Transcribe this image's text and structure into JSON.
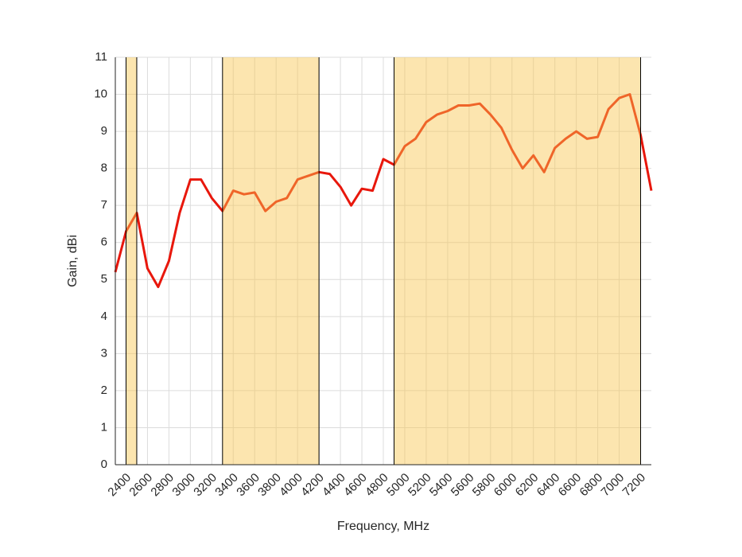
{
  "chart_data": {
    "type": "line",
    "xlabel": "Frequency, MHz",
    "ylabel": "Gain, dBi",
    "x": [
      2300,
      2400,
      2500,
      2600,
      2700,
      2800,
      2900,
      3000,
      3100,
      3200,
      3300,
      3400,
      3500,
      3600,
      3700,
      3800,
      3900,
      4000,
      4100,
      4200,
      4300,
      4400,
      4500,
      4600,
      4700,
      4800,
      4900,
      5000,
      5100,
      5200,
      5300,
      5400,
      5500,
      5600,
      5700,
      5800,
      5900,
      6000,
      6100,
      6200,
      6300,
      6400,
      6500,
      6600,
      6700,
      6800,
      6900,
      7000,
      7100,
      7200,
      7300
    ],
    "series": [
      {
        "color": "#e8170c",
        "values": [
          5.2,
          6.3,
          6.8,
          5.3,
          4.8,
          5.5,
          6.8,
          7.7,
          7.7,
          7.2,
          6.85,
          7.4,
          7.3,
          7.35,
          6.85,
          7.1,
          7.2,
          7.7,
          7.8,
          7.9,
          7.85,
          7.5,
          7.0,
          7.45,
          7.4,
          8.25,
          8.1,
          8.6,
          8.8,
          9.25,
          9.45,
          9.55,
          9.7,
          9.7,
          9.75,
          9.45,
          9.1,
          8.5,
          8.0,
          8.35,
          7.9,
          8.55,
          8.8,
          9.0,
          8.8,
          8.85,
          9.6,
          9.9,
          10.0,
          8.9,
          7.4
        ]
      }
    ],
    "bands": [
      [
        2400,
        2500
      ],
      [
        3300,
        4200
      ],
      [
        4900,
        7200
      ]
    ],
    "band_color": "#f9c54e",
    "xlim": [
      2300,
      7300
    ],
    "xticks": [
      2400,
      2600,
      2800,
      3000,
      3200,
      3400,
      3600,
      3800,
      4000,
      4200,
      4400,
      4600,
      4800,
      5000,
      5200,
      5400,
      5600,
      5800,
      6000,
      6200,
      6400,
      6600,
      6800,
      7000,
      7200
    ],
    "ylim": [
      0,
      11
    ],
    "yticks": [
      0,
      1,
      2,
      3,
      4,
      5,
      6,
      7,
      8,
      9,
      10,
      11
    ],
    "grid": true
  }
}
